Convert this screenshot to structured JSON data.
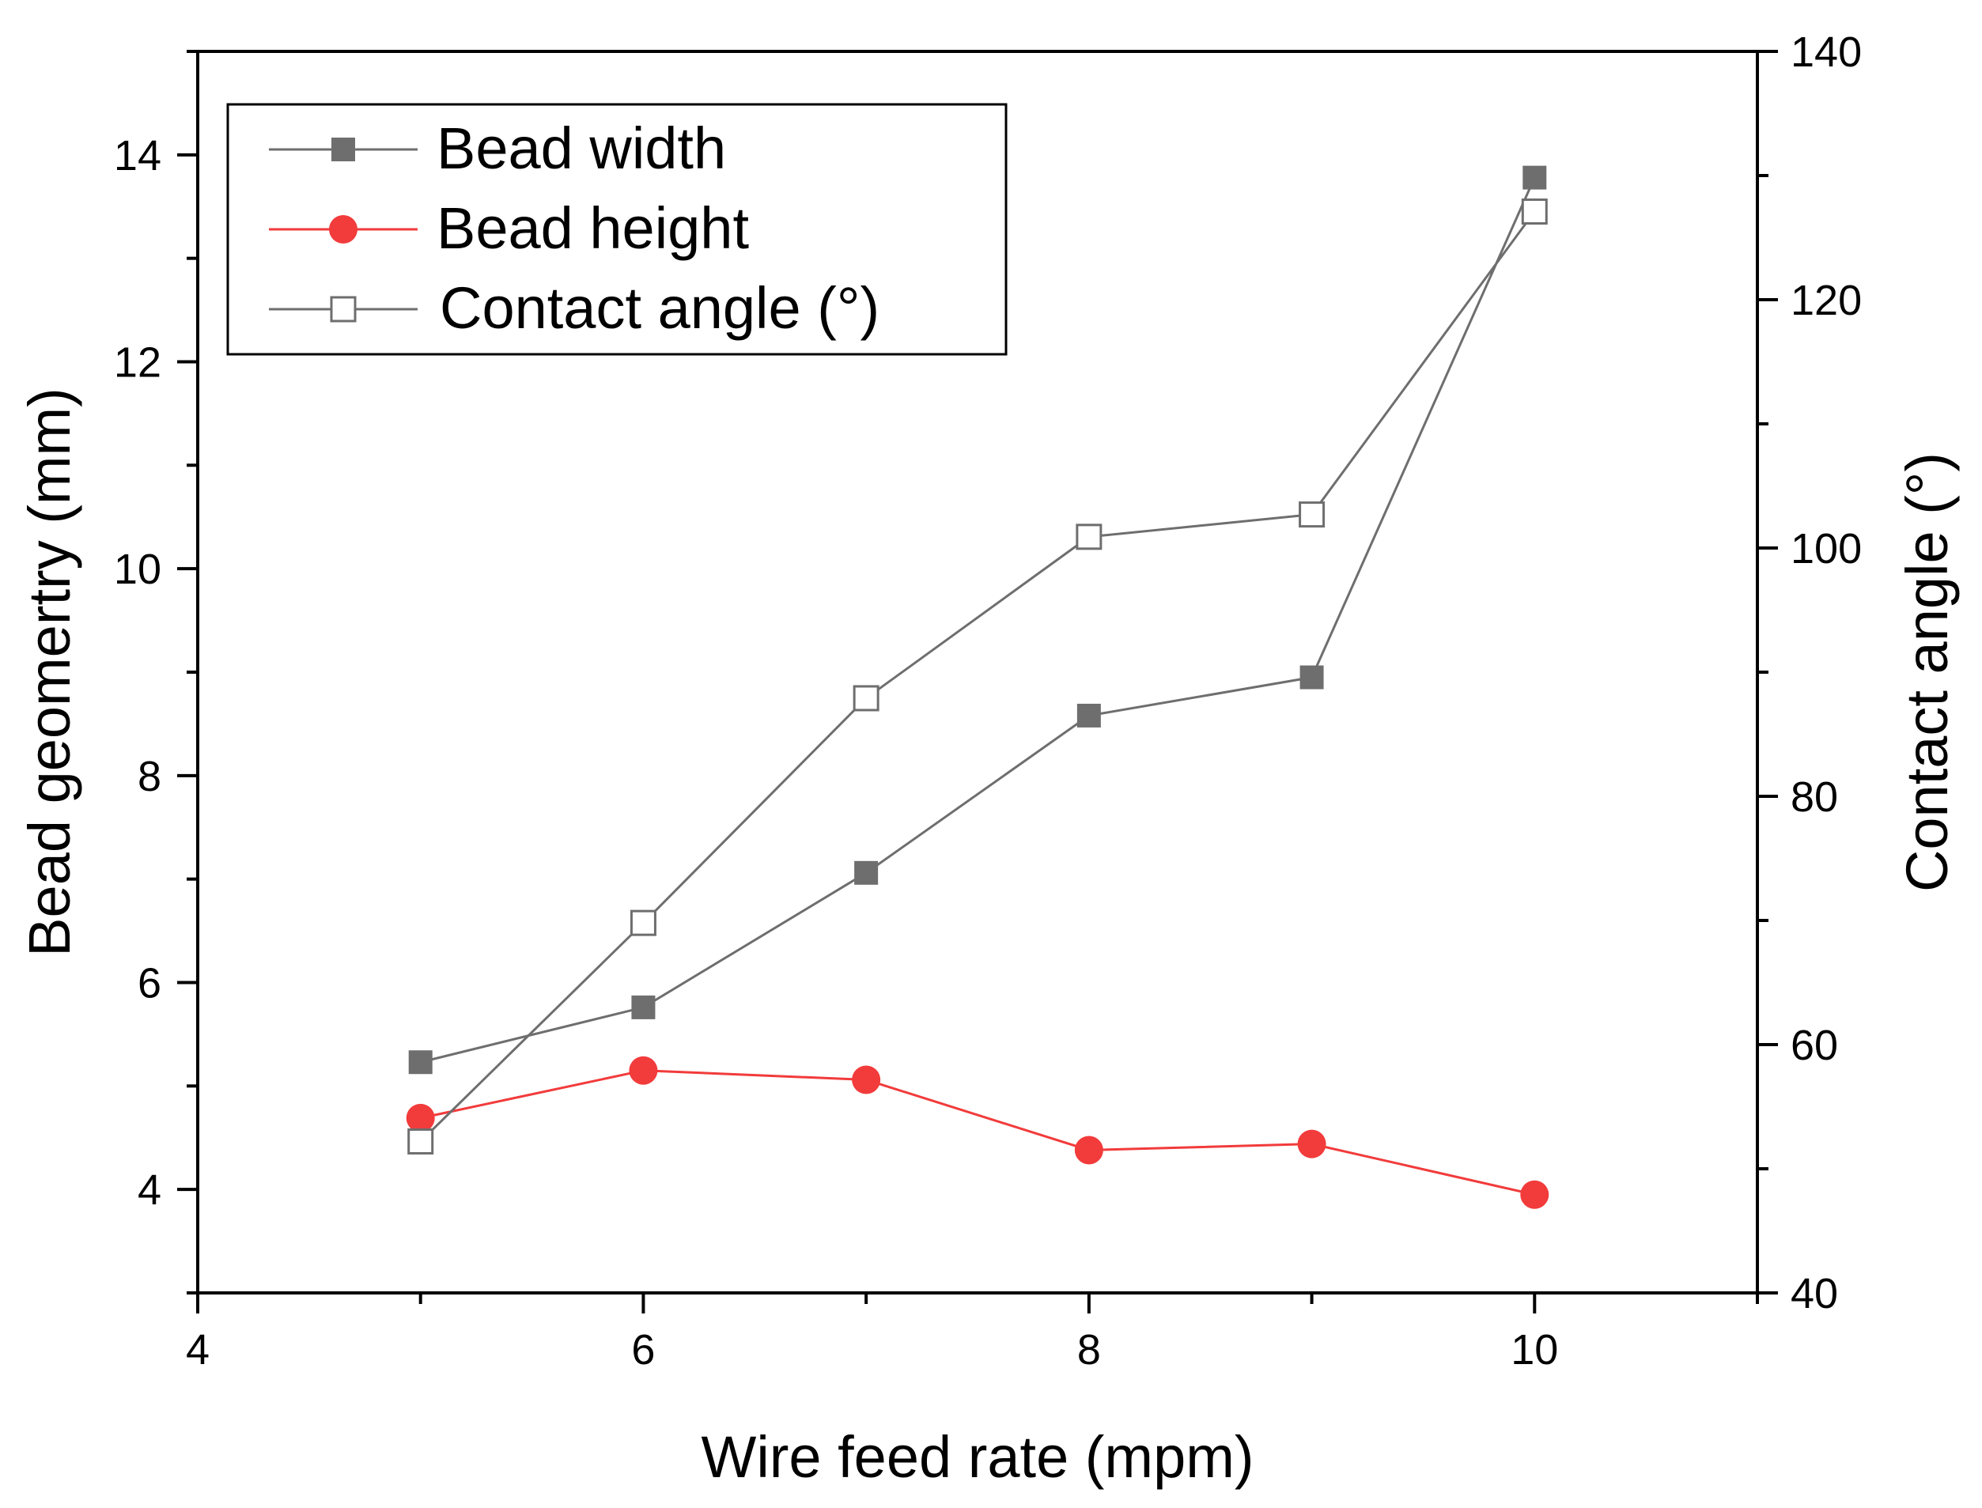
{
  "chart_data": {
    "type": "line",
    "x": [
      5,
      6,
      7,
      8,
      9,
      10
    ],
    "xlabel": "Wire feed rate (mpm)",
    "ylabel": "Bead geomertry (mm)",
    "y2label": "Contact angle (°)",
    "xlim": [
      4,
      11
    ],
    "ylim": [
      3,
      15
    ],
    "y2lim": [
      40,
      140
    ],
    "xticks": [
      4,
      6,
      8,
      10
    ],
    "yticks": [
      4,
      6,
      8,
      10,
      12,
      14
    ],
    "y2ticks": [
      40,
      60,
      80,
      100,
      120,
      140
    ],
    "legend_position": "top-left",
    "series": [
      {
        "name": "Bead width",
        "axis": "left",
        "marker": "filled-square",
        "color": "#6e6e6e",
        "values": [
          5.23,
          5.76,
          7.06,
          8.58,
          8.95,
          13.78
        ]
      },
      {
        "name": "Bead height",
        "axis": "left",
        "marker": "filled-circle",
        "color": "#f23b3b",
        "values": [
          4.69,
          5.15,
          5.06,
          4.38,
          4.44,
          3.95
        ]
      },
      {
        "name": "Contact angle (°)",
        "axis": "right",
        "marker": "open-square",
        "color": "#6e6e6e",
        "values": [
          52.2,
          69.8,
          87.9,
          100.9,
          102.7,
          127.1
        ]
      }
    ]
  }
}
